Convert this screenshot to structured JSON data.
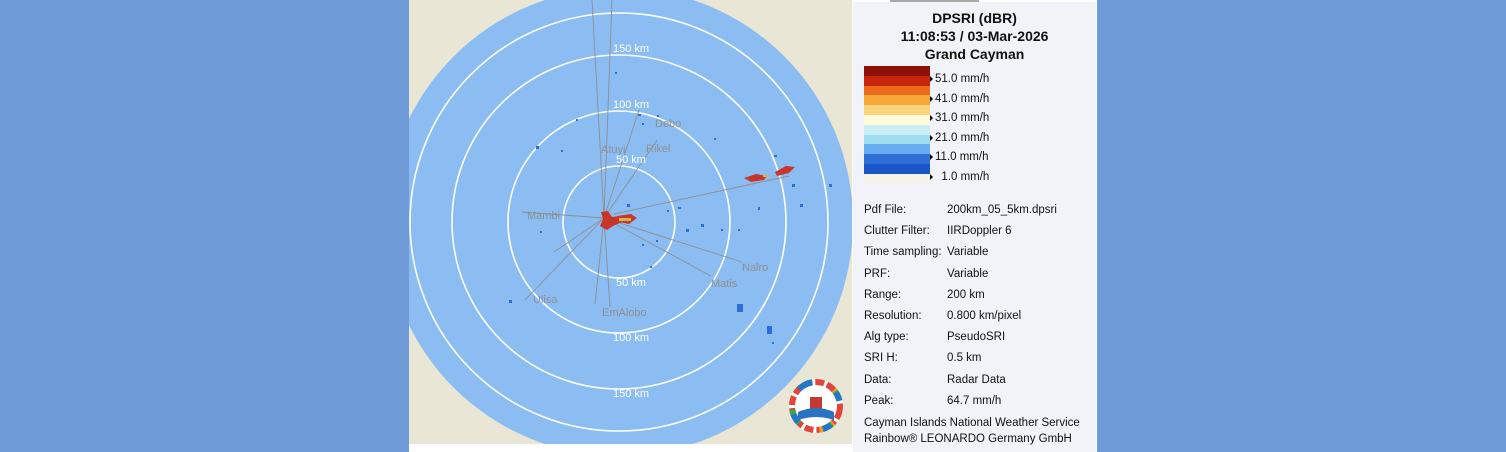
{
  "product": {
    "name": "DPSRI (dBR)",
    "timestamp": "11:08:53 / 03-Mar-2026",
    "site": "Grand Cayman"
  },
  "map": {
    "ring_labels": [
      "150 km",
      "100 km",
      "50 km",
      "50 km",
      "100 km",
      "150 km"
    ],
    "towns": [
      "Debo",
      "Atuyi",
      "Rikel",
      "Mambi",
      "Nalro",
      "Matis",
      "Ulisa",
      "EmAlobo"
    ],
    "colors": {
      "sea": "#8bbdf3",
      "land": "#e9e6d5",
      "rings": "#ffffff",
      "radials": "#8f8f8f",
      "light_echo": "#2d6fd6",
      "heavy_echo": "#c8352b"
    },
    "logo_icon": "weather-service-logo-icon"
  },
  "legend": {
    "colors": [
      "#8e1008",
      "#c6250e",
      "#ef6b1c",
      "#f7a83b",
      "#fbd37c",
      "#fffcd9",
      "#c8f0f4",
      "#9fdcef",
      "#67acf0",
      "#2d6fd6",
      "#1a57c6",
      "#f4f2ea"
    ],
    "labels": [
      "51.0 mm/h",
      "41.0 mm/h",
      "31.0 mm/h",
      "21.0 mm/h",
      "11.0 mm/h",
      "1.0 mm/h"
    ]
  },
  "info": [
    {
      "key": "Pdf File:",
      "value": "200km_05_5km.dpsri"
    },
    {
      "key": "Clutter Filter:",
      "value": "IIRDoppler 6"
    },
    {
      "key": "Time sampling:",
      "value": "Variable"
    },
    {
      "key": "PRF:",
      "value": "Variable"
    },
    {
      "key": "Range:",
      "value": "200 km"
    },
    {
      "key": "Resolution:",
      "value": "0.800 km/pixel"
    },
    {
      "key": "Alg type:",
      "value": "PseudoSRI"
    },
    {
      "key": "SRI H:",
      "value": "0.5 km"
    },
    {
      "key": "Data:",
      "value": "Radar Data"
    },
    {
      "key": "Peak:",
      "value": "64.7 mm/h"
    }
  ],
  "credits": {
    "line1": "Cayman Islands National Weather Service",
    "line2": "Rainbow® LEONARDO Germany GmbH"
  }
}
